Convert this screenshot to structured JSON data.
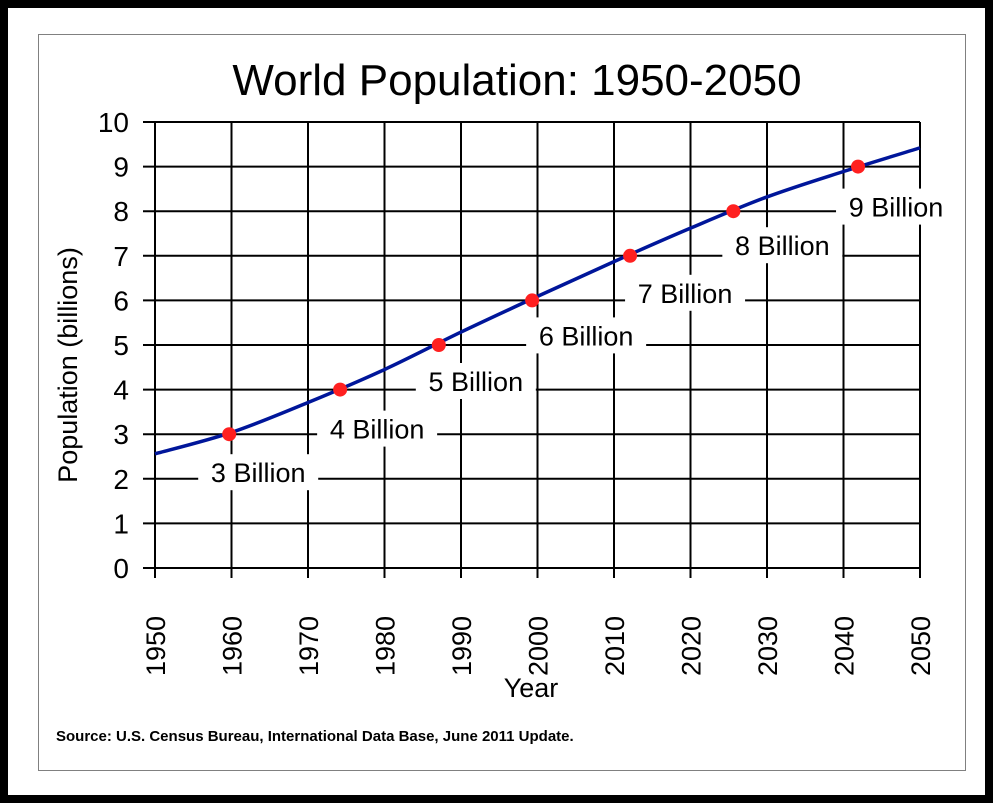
{
  "chart_data": {
    "type": "line",
    "title": "World Population: 1950-2050",
    "xlabel": "Year",
    "ylabel": "Population  (billions)",
    "xlim": [
      1950,
      2050
    ],
    "ylim": [
      0,
      10
    ],
    "xticks": [
      "1950",
      "1960",
      "1970",
      "1980",
      "1990",
      "2000",
      "2010",
      "2020",
      "2030",
      "2040",
      "2050"
    ],
    "yticks": [
      "0",
      "1",
      "2",
      "3",
      "4",
      "5",
      "6",
      "7",
      "8",
      "9",
      "10"
    ],
    "grid": true,
    "series": [
      {
        "name": "World population",
        "color": "#00169a",
        "x": [
          1950,
          1960,
          1970,
          1980,
          1990,
          2000,
          2010,
          2020,
          2030,
          2040,
          2050
        ],
        "y": [
          2.56,
          3.04,
          3.71,
          4.45,
          5.29,
          6.09,
          6.87,
          7.62,
          8.32,
          8.89,
          9.42
        ]
      }
    ],
    "milestones": [
      {
        "year": 1959.7,
        "value": 3,
        "label": "3 Billion"
      },
      {
        "year": 1974.2,
        "value": 4,
        "label": "4 Billion"
      },
      {
        "year": 1987.1,
        "value": 5,
        "label": "5 Billion"
      },
      {
        "year": 1999.3,
        "value": 6,
        "label": "6 Billion"
      },
      {
        "year": 2012.1,
        "value": 7,
        "label": "7 Billion"
      },
      {
        "year": 2025.6,
        "value": 8,
        "label": "8 Billion"
      },
      {
        "year": 2041.9,
        "value": 9,
        "label": "9 Billion"
      }
    ],
    "marker_color": "#ff2020"
  },
  "source": "Source: U.S. Census Bureau, International Data Base, June 2011 Update."
}
